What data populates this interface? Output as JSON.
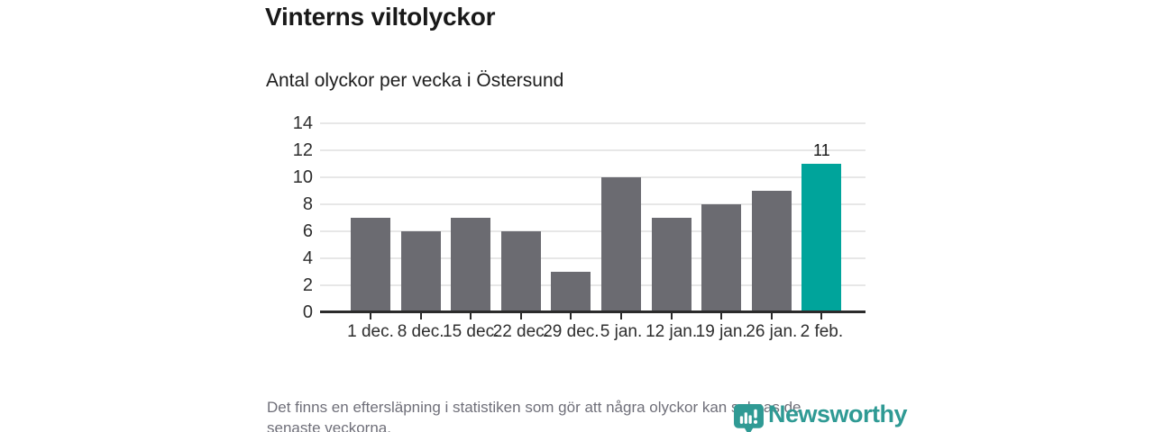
{
  "footnote": {
    "line1": "Det finns en eftersläpning i statistiken som gör att några olyckor kan saknas de",
    "line2": "senaste veckorna."
  },
  "logo": {
    "text": "Newsworthy"
  },
  "colors": {
    "bar": "#6b6b71",
    "highlight": "#00a49b",
    "gridline": "#e7e7e7",
    "axis": "#2b2b2b",
    "logo_teal": "#2f9a94"
  },
  "chart_data": {
    "type": "bar",
    "title": "Vinterns viltolyckor",
    "subtitle": "Antal olyckor per vecka i Östersund",
    "categories": [
      "1 dec.",
      "8 dec.",
      "15 dec.",
      "22 dec.",
      "29 dec.",
      "5 jan.",
      "12 jan.",
      "19 jan.",
      "26 jan.",
      "2 feb."
    ],
    "values": [
      7,
      6,
      7,
      6,
      3,
      10,
      7,
      8,
      9,
      11
    ],
    "highlighted_index": 9,
    "data_label": {
      "index": 9,
      "text": "11"
    },
    "xlabel": "",
    "ylabel": "",
    "yticks": [
      0,
      2,
      4,
      6,
      8,
      10,
      12,
      14
    ],
    "ylim": [
      0,
      14
    ],
    "grid": true,
    "legend": false
  }
}
